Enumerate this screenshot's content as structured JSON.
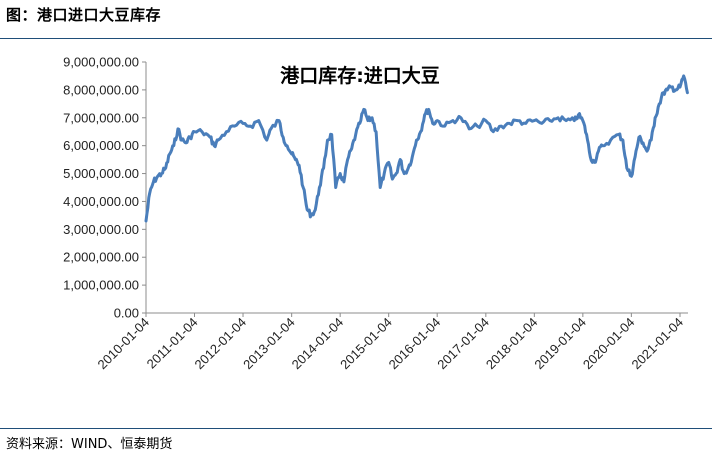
{
  "figure_title": "图：港口进口大豆库存",
  "source": "资料来源：WIND、恒泰期货",
  "colors": {
    "line": "#4a7ebb",
    "axis": "#8c8c8c",
    "rule": "#1f4e79"
  },
  "chart_data": {
    "type": "line",
    "title": "港口库存:进口大豆",
    "xlabel": "",
    "ylabel": "",
    "ylim": [
      0,
      9000000
    ],
    "yticks": [
      "0.00",
      "1,000,000.00",
      "2,000,000.00",
      "3,000,000.00",
      "4,000,000.00",
      "5,000,000.00",
      "6,000,000.00",
      "7,000,000.00",
      "8,000,000.00",
      "9,000,000.00"
    ],
    "xticks": [
      "2010-01-04",
      "2011-01-04",
      "2012-01-04",
      "2013-01-04",
      "2014-01-04",
      "2015-01-04",
      "2016-01-04",
      "2017-01-04",
      "2018-01-04",
      "2019-01-04",
      "2020-01-04",
      "2021-01-04"
    ],
    "grid": false,
    "legend": "none",
    "series": [
      {
        "values": [
          [
            "2010-01-04",
            3300000
          ],
          [
            "2010-02-01",
            4300000
          ],
          [
            "2010-03-01",
            4700000
          ],
          [
            "2010-04-01",
            4900000
          ],
          [
            "2010-05-01",
            5000000
          ],
          [
            "2010-06-01",
            5200000
          ],
          [
            "2010-07-01",
            5700000
          ],
          [
            "2010-08-01",
            6000000
          ],
          [
            "2010-09-01",
            6600000
          ],
          [
            "2010-10-01",
            6200000
          ],
          [
            "2010-11-01",
            6100000
          ],
          [
            "2010-12-01",
            6300000
          ],
          [
            "2011-01-04",
            6500000
          ],
          [
            "2011-03-01",
            6500000
          ],
          [
            "2011-05-01",
            6300000
          ],
          [
            "2011-06-01",
            6000000
          ],
          [
            "2011-07-01",
            6200000
          ],
          [
            "2011-09-01",
            6500000
          ],
          [
            "2011-11-01",
            6700000
          ],
          [
            "2012-01-04",
            6800000
          ],
          [
            "2012-03-01",
            6700000
          ],
          [
            "2012-05-01",
            6900000
          ],
          [
            "2012-07-01",
            6200000
          ],
          [
            "2012-08-01",
            6600000
          ],
          [
            "2012-10-01",
            6900000
          ],
          [
            "2012-11-01",
            6300000
          ],
          [
            "2012-12-01",
            6000000
          ],
          [
            "2013-01-04",
            5700000
          ],
          [
            "2013-02-01",
            5500000
          ],
          [
            "2013-03-01",
            5300000
          ],
          [
            "2013-04-01",
            4500000
          ],
          [
            "2013-05-01",
            3700000
          ],
          [
            "2013-06-01",
            3500000
          ],
          [
            "2013-07-01",
            3700000
          ],
          [
            "2013-08-01",
            4500000
          ],
          [
            "2013-09-01",
            5200000
          ],
          [
            "2013-10-01",
            6200000
          ],
          [
            "2013-11-01",
            6400000
          ],
          [
            "2013-12-01",
            4500000
          ],
          [
            "2014-01-04",
            5000000
          ],
          [
            "2014-02-01",
            4700000
          ],
          [
            "2014-03-01",
            5500000
          ],
          [
            "2014-04-01",
            5900000
          ],
          [
            "2014-05-01",
            6400000
          ],
          [
            "2014-06-01",
            6800000
          ],
          [
            "2014-07-01",
            7300000
          ],
          [
            "2014-08-01",
            6900000
          ],
          [
            "2014-09-01",
            7000000
          ],
          [
            "2014-10-01",
            6500000
          ],
          [
            "2014-11-01",
            4500000
          ],
          [
            "2014-12-01",
            5000000
          ],
          [
            "2015-01-04",
            5400000
          ],
          [
            "2015-02-01",
            4800000
          ],
          [
            "2015-03-01",
            5000000
          ],
          [
            "2015-04-01",
            5500000
          ],
          [
            "2015-05-01",
            5000000
          ],
          [
            "2015-06-01",
            5200000
          ],
          [
            "2015-07-01",
            5600000
          ],
          [
            "2015-08-01",
            6200000
          ],
          [
            "2015-09-01",
            6500000
          ],
          [
            "2015-10-01",
            7100000
          ],
          [
            "2015-11-01",
            7300000
          ],
          [
            "2015-12-01",
            6800000
          ],
          [
            "2016-01-04",
            6900000
          ],
          [
            "2016-03-01",
            6700000
          ],
          [
            "2016-05-01",
            6900000
          ],
          [
            "2016-07-01",
            7000000
          ],
          [
            "2016-09-01",
            6600000
          ],
          [
            "2016-11-01",
            6700000
          ],
          [
            "2017-01-04",
            6900000
          ],
          [
            "2017-03-01",
            6500000
          ],
          [
            "2017-05-01",
            6700000
          ],
          [
            "2017-07-01",
            6800000
          ],
          [
            "2017-09-01",
            6900000
          ],
          [
            "2017-11-01",
            6800000
          ],
          [
            "2018-01-04",
            6900000
          ],
          [
            "2018-03-01",
            6800000
          ],
          [
            "2018-05-01",
            6900000
          ],
          [
            "2018-07-01",
            7000000
          ],
          [
            "2018-09-01",
            6900000
          ],
          [
            "2018-11-01",
            6900000
          ],
          [
            "2018-12-01",
            7100000
          ],
          [
            "2019-01-04",
            6900000
          ],
          [
            "2019-02-01",
            6400000
          ],
          [
            "2019-03-01",
            5600000
          ],
          [
            "2019-04-01",
            5400000
          ],
          [
            "2019-05-01",
            5800000
          ],
          [
            "2019-06-01",
            6000000
          ],
          [
            "2019-08-01",
            6200000
          ],
          [
            "2019-10-01",
            6400000
          ],
          [
            "2019-11-01",
            6200000
          ],
          [
            "2019-12-01",
            5200000
          ],
          [
            "2020-01-04",
            4900000
          ],
          [
            "2020-02-01",
            5600000
          ],
          [
            "2020-03-01",
            6300000
          ],
          [
            "2020-04-01",
            6100000
          ],
          [
            "2020-05-01",
            5800000
          ],
          [
            "2020-06-01",
            6200000
          ],
          [
            "2020-07-01",
            7000000
          ],
          [
            "2020-08-01",
            7500000
          ],
          [
            "2020-09-01",
            7900000
          ],
          [
            "2020-10-01",
            8000000
          ],
          [
            "2020-11-01",
            8100000
          ],
          [
            "2020-12-01",
            8000000
          ],
          [
            "2021-01-04",
            8100000
          ],
          [
            "2021-02-01",
            8500000
          ],
          [
            "2021-03-01",
            7900000
          ]
        ]
      }
    ]
  }
}
